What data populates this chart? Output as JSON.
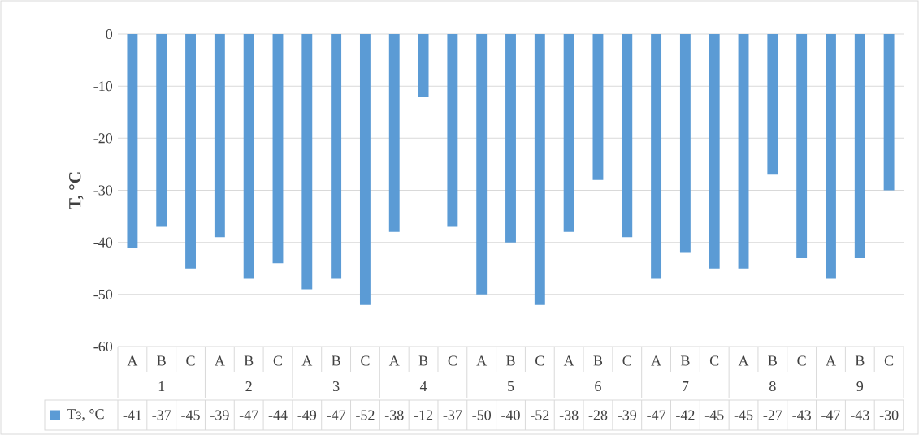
{
  "chart_data": {
    "type": "bar",
    "ylabel": "T, °C",
    "categories": [
      "A",
      "B",
      "C",
      "A",
      "B",
      "C",
      "A",
      "B",
      "C",
      "A",
      "B",
      "C",
      "A",
      "B",
      "C",
      "A",
      "B",
      "C",
      "A",
      "B",
      "C",
      "A",
      "B",
      "C",
      "A",
      "B",
      "C"
    ],
    "annotations": [
      "1",
      "2",
      "3",
      "4",
      "5",
      "6",
      "7",
      "8",
      "9"
    ],
    "series": [
      {
        "name": "Tз, °C",
        "color": "#5b9bd5",
        "values": [
          -41,
          -37,
          -45,
          -39,
          -47,
          -44,
          -49,
          -47,
          -52,
          -38,
          -12,
          -37,
          -50,
          -40,
          -52,
          -38,
          -28,
          -39,
          -47,
          -42,
          -45,
          -45,
          -27,
          -43,
          -47,
          -43,
          -30
        ]
      }
    ],
    "ylim": [
      -60,
      0
    ],
    "yticks": [
      -60,
      -50,
      -40,
      -30,
      -20,
      -10,
      0
    ],
    "grid": "y",
    "legend": "bottom",
    "data_labels": true
  }
}
